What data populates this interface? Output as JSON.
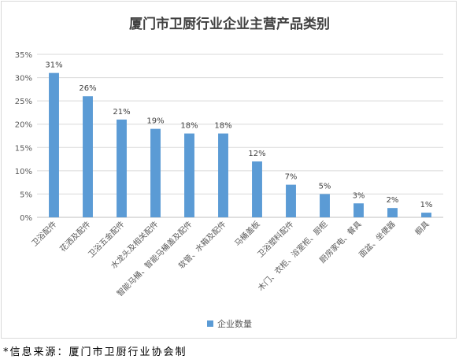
{
  "chart_data": {
    "type": "bar",
    "title": "厦门市卫厨行业企业主营产品类别",
    "categories": [
      "卫浴配件",
      "花洒及配件",
      "卫浴五金配件",
      "水龙头及相关配件",
      "智能马桶、智能马桶盖及配件",
      "软管、水箱及配件",
      "马桶盖板",
      "卫浴塑料配件",
      "木门、衣柜、浴室柜、厨柜",
      "厨房家电、餐具",
      "面盆、坐便器",
      "橱具"
    ],
    "series": [
      {
        "name": "企业数量",
        "values": [
          31,
          26,
          21,
          19,
          18,
          18,
          12,
          7,
          5,
          3,
          2,
          1
        ],
        "labels": [
          "31%",
          "26%",
          "21%",
          "19%",
          "18%",
          "18%",
          "12%",
          "7%",
          "5%",
          "3%",
          "2%",
          "1%"
        ]
      }
    ],
    "y_ticks": [
      "0%",
      "5%",
      "10%",
      "15%",
      "20%",
      "25%",
      "30%",
      "35%"
    ],
    "ylim": [
      0,
      35
    ],
    "grid": true,
    "legend_position": "bottom",
    "bar_color": "#5b9bd5"
  },
  "footer": {
    "source": "*信息来源：厦门市卫厨行业协会制"
  }
}
